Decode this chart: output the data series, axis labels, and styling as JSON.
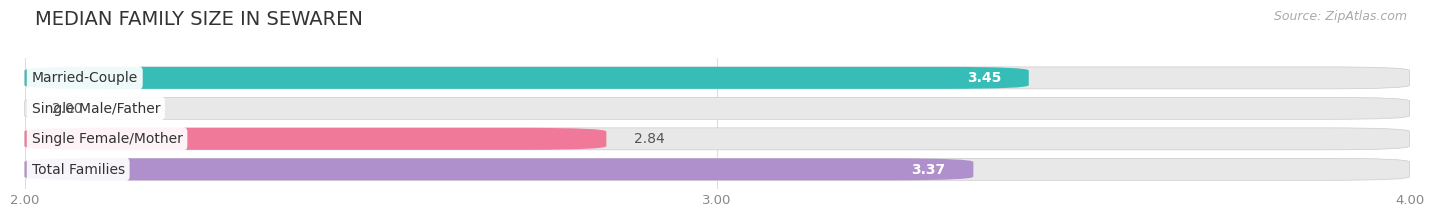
{
  "title": "MEDIAN FAMILY SIZE IN SEWAREN",
  "source": "Source: ZipAtlas.com",
  "categories": [
    "Married-Couple",
    "Single Male/Father",
    "Single Female/Mother",
    "Total Families"
  ],
  "values": [
    3.45,
    2.0,
    2.84,
    3.37
  ],
  "bar_colors": [
    "#37bdb8",
    "#a8bce8",
    "#f07898",
    "#b090cc"
  ],
  "value_in_bar": [
    true,
    false,
    false,
    true
  ],
  "xmin": 2.0,
  "xmax": 4.0,
  "xticks": [
    2.0,
    3.0,
    4.0
  ],
  "background_color": "#ffffff",
  "bar_background_color": "#e8e8e8",
  "title_fontsize": 14,
  "source_fontsize": 9,
  "label_fontsize": 10,
  "value_fontsize": 10
}
